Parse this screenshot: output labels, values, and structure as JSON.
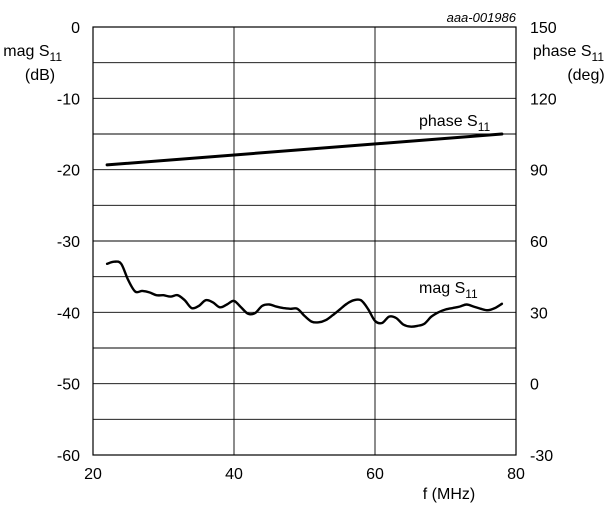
{
  "chart_data": {
    "type": "line",
    "reference": "aaa-001986",
    "x_axis": {
      "label": "f (MHz)",
      "range": [
        20,
        80
      ],
      "ticks": [
        20,
        40,
        60,
        80
      ],
      "tick_labels": [
        "20",
        "40",
        "60",
        "80"
      ]
    },
    "y_left": {
      "label_lines": [
        "mag S",
        "(dB)"
      ],
      "label_sub": "11",
      "range": [
        -60,
        0
      ],
      "ticks": [
        0,
        -10,
        -20,
        -30,
        -40,
        -50,
        -60
      ],
      "tick_labels": [
        "0",
        "-10",
        "-20",
        "-30",
        "-40",
        "-50",
        "-60"
      ]
    },
    "y_right": {
      "label_lines": [
        "phase S",
        "(deg)"
      ],
      "label_sub": "11",
      "range": [
        -30,
        150
      ],
      "ticks": [
        150,
        120,
        90,
        60,
        30,
        0,
        -30
      ],
      "tick_labels": [
        "150",
        "120",
        "90",
        "60",
        "30",
        "0",
        "-30"
      ]
    },
    "grid": true,
    "series": [
      {
        "name": "phase S",
        "name_sub": "11",
        "axis": "right",
        "x": [
          22,
          78
        ],
        "values": [
          92,
          105
        ]
      },
      {
        "name": "mag S",
        "name_sub": "11",
        "axis": "left",
        "x": [
          22,
          23,
          24,
          25,
          26,
          27,
          28,
          29,
          30,
          31,
          32,
          33,
          34,
          35,
          36,
          37,
          38,
          39,
          40,
          41,
          42,
          43,
          44,
          45,
          46,
          47,
          48,
          49,
          50,
          51,
          52,
          53,
          54,
          55,
          56,
          57,
          58,
          59,
          60,
          61,
          62,
          63,
          64,
          65,
          66,
          67,
          68,
          69,
          70,
          71,
          72,
          73,
          74,
          75,
          76,
          77,
          78
        ],
        "values": [
          -33.2,
          -32.9,
          -33.2,
          -35.5,
          -37.1,
          -37.0,
          -37.2,
          -37.6,
          -37.6,
          -37.8,
          -37.6,
          -38.3,
          -39.4,
          -39.1,
          -38.3,
          -38.6,
          -39.3,
          -38.9,
          -38.4,
          -39.3,
          -40.2,
          -40.1,
          -39.1,
          -38.9,
          -39.2,
          -39.4,
          -39.5,
          -39.5,
          -40.5,
          -41.3,
          -41.4,
          -41.1,
          -40.4,
          -39.6,
          -38.8,
          -38.3,
          -38.3,
          -39.5,
          -41.2,
          -41.5,
          -40.6,
          -40.8,
          -41.7,
          -42.0,
          -41.9,
          -41.6,
          -40.6,
          -40.0,
          -39.6,
          -39.4,
          -39.2,
          -38.9,
          -39.2,
          -39.5,
          -39.7,
          -39.4,
          -38.8
        ]
      }
    ]
  }
}
